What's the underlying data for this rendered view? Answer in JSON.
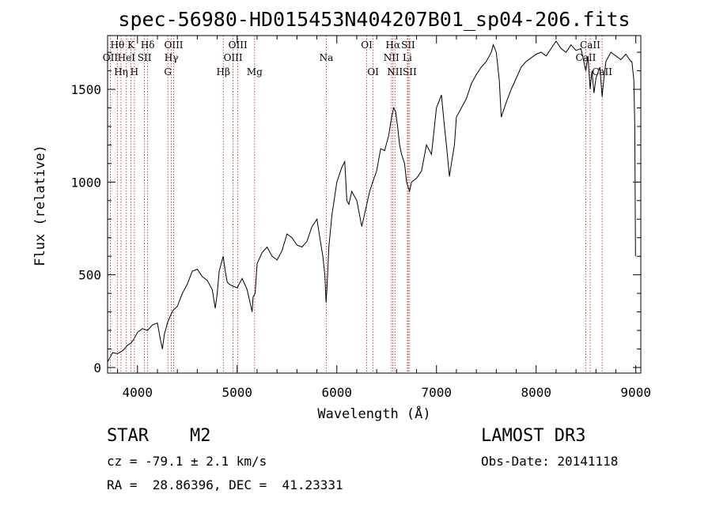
{
  "chart_data": {
    "type": "line",
    "title": "spec-56980-HD015453N404207B01_sp04-206.fits",
    "xlabel": "Wavelength (Å)",
    "ylabel": "Flux (relative)",
    "xlim": [
      3700,
      9050
    ],
    "ylim": [
      -30,
      1790
    ],
    "xticks": [
      4000,
      5000,
      6000,
      7000,
      8000,
      9000
    ],
    "xtick_labels": [
      "4000",
      "5000",
      "6000",
      "7000",
      "8000",
      "9000"
    ],
    "yticks": [
      0,
      500,
      1000,
      1500
    ],
    "ytick_labels": [
      "0",
      "500",
      "1000",
      "1500"
    ],
    "grid": false,
    "colors": {
      "spectrum": "#000000",
      "line_markers": "#b22222",
      "axes": "#000000"
    },
    "spectrum": {
      "x": [
        3700,
        3720,
        3750,
        3800,
        3850,
        3900,
        3930,
        3960,
        4000,
        4050,
        4100,
        4150,
        4200,
        4230,
        4250,
        4270,
        4300,
        4330,
        4360,
        4400,
        4450,
        4500,
        4550,
        4600,
        4650,
        4700,
        4750,
        4780,
        4800,
        4820,
        4840,
        4860,
        4880,
        4900,
        4920,
        4950,
        5000,
        5050,
        5100,
        5150,
        5160,
        5180,
        5200,
        5250,
        5300,
        5350,
        5400,
        5450,
        5500,
        5550,
        5600,
        5650,
        5700,
        5750,
        5800,
        5830,
        5860,
        5880,
        5892,
        5900,
        5920,
        5950,
        6000,
        6050,
        6080,
        6100,
        6120,
        6150,
        6200,
        6250,
        6300,
        6330,
        6360,
        6400,
        6440,
        6480,
        6520,
        6550,
        6570,
        6590,
        6610,
        6630,
        6650,
        6680,
        6700,
        6730,
        6750,
        6800,
        6850,
        6900,
        6950,
        7000,
        7050,
        7080,
        7100,
        7130,
        7150,
        7180,
        7200,
        7250,
        7300,
        7350,
        7400,
        7450,
        7500,
        7550,
        7570,
        7600,
        7630,
        7650,
        7700,
        7750,
        7800,
        7850,
        7900,
        7950,
        8000,
        8050,
        8100,
        8150,
        8200,
        8250,
        8300,
        8350,
        8400,
        8450,
        8498,
        8520,
        8542,
        8560,
        8580,
        8600,
        8640,
        8662,
        8680,
        8700,
        8750,
        8800,
        8850,
        8900,
        8950,
        8960,
        8980,
        8990,
        8997
      ],
      "y": [
        30,
        50,
        80,
        75,
        90,
        120,
        130,
        150,
        190,
        210,
        200,
        230,
        240,
        150,
        100,
        180,
        240,
        280,
        310,
        330,
        400,
        450,
        520,
        530,
        490,
        470,
        420,
        320,
        400,
        520,
        560,
        600,
        520,
        460,
        450,
        440,
        430,
        480,
        420,
        300,
        380,
        400,
        560,
        620,
        650,
        600,
        580,
        630,
        720,
        700,
        660,
        650,
        680,
        760,
        800,
        700,
        600,
        500,
        350,
        420,
        650,
        820,
        1000,
        1080,
        1110,
        900,
        880,
        950,
        900,
        760,
        880,
        950,
        1000,
        1060,
        1180,
        1170,
        1250,
        1350,
        1400,
        1380,
        1300,
        1200,
        1150,
        1100,
        1000,
        950,
        1000,
        1020,
        1060,
        1200,
        1150,
        1400,
        1470,
        1300,
        1200,
        1030,
        1100,
        1200,
        1350,
        1400,
        1450,
        1530,
        1580,
        1620,
        1650,
        1700,
        1740,
        1700,
        1550,
        1350,
        1430,
        1500,
        1560,
        1620,
        1650,
        1670,
        1690,
        1700,
        1680,
        1720,
        1760,
        1720,
        1700,
        1740,
        1710,
        1720,
        1600,
        1680,
        1500,
        1600,
        1480,
        1560,
        1620,
        1460,
        1560,
        1650,
        1700,
        1680,
        1660,
        1690,
        1650,
        1650,
        1550,
        1300,
        600
      ]
    },
    "lines": [
      {
        "name": "OII",
        "wavelength": 3727,
        "row": 1
      },
      {
        "name": "Hθ",
        "wavelength": 3798,
        "row": 0
      },
      {
        "name": "Hη",
        "wavelength": 3835,
        "row": 2
      },
      {
        "name": "HeI",
        "wavelength": 3889,
        "row": 1
      },
      {
        "name": "K",
        "wavelength": 3934,
        "row": 0
      },
      {
        "name": "H",
        "wavelength": 3969,
        "row": 2
      },
      {
        "name": "SII",
        "wavelength": 4070,
        "row": 1
      },
      {
        "name": "Hδ",
        "wavelength": 4102,
        "row": 0
      },
      {
        "name": "G",
        "wavelength": 4305,
        "row": 2
      },
      {
        "name": "Hγ",
        "wavelength": 4340,
        "row": 1
      },
      {
        "name": "OIII",
        "wavelength": 4363,
        "row": 0
      },
      {
        "name": "Hβ",
        "wavelength": 4861,
        "row": 2
      },
      {
        "name": "OIII",
        "wavelength": 4959,
        "row": 1
      },
      {
        "name": "OIII",
        "wavelength": 5007,
        "row": 0
      },
      {
        "name": "Mg",
        "wavelength": 5175,
        "row": 2
      },
      {
        "name": "Na",
        "wavelength": 5894,
        "row": 1
      },
      {
        "name": "OI",
        "wavelength": 6300,
        "row": 0
      },
      {
        "name": "OI",
        "wavelength": 6364,
        "row": 2
      },
      {
        "name": "NII",
        "wavelength": 6548,
        "row": 1
      },
      {
        "name": "Hα",
        "wavelength": 6563,
        "row": 0
      },
      {
        "name": "NII",
        "wavelength": 6583,
        "row": 2
      },
      {
        "name": "SII",
        "wavelength": 6716,
        "row": 0
      },
      {
        "name": "Li",
        "wavelength": 6708,
        "row": 1
      },
      {
        "name": "SII",
        "wavelength": 6731,
        "row": 2
      },
      {
        "name": "CaII",
        "wavelength": 8498,
        "row": 1
      },
      {
        "name": "CaII",
        "wavelength": 8542,
        "row": 0
      },
      {
        "name": "CaII",
        "wavelength": 8662,
        "row": 2
      }
    ]
  },
  "info": {
    "object_class": "STAR",
    "subclass": "M2",
    "survey": "LAMOST DR3",
    "cz": "cz = -79.1 ± 2.1 km/s",
    "obs_date": "Obs-Date: 20141118",
    "coords": "RA =  28.86396, DEC =  41.23331"
  }
}
